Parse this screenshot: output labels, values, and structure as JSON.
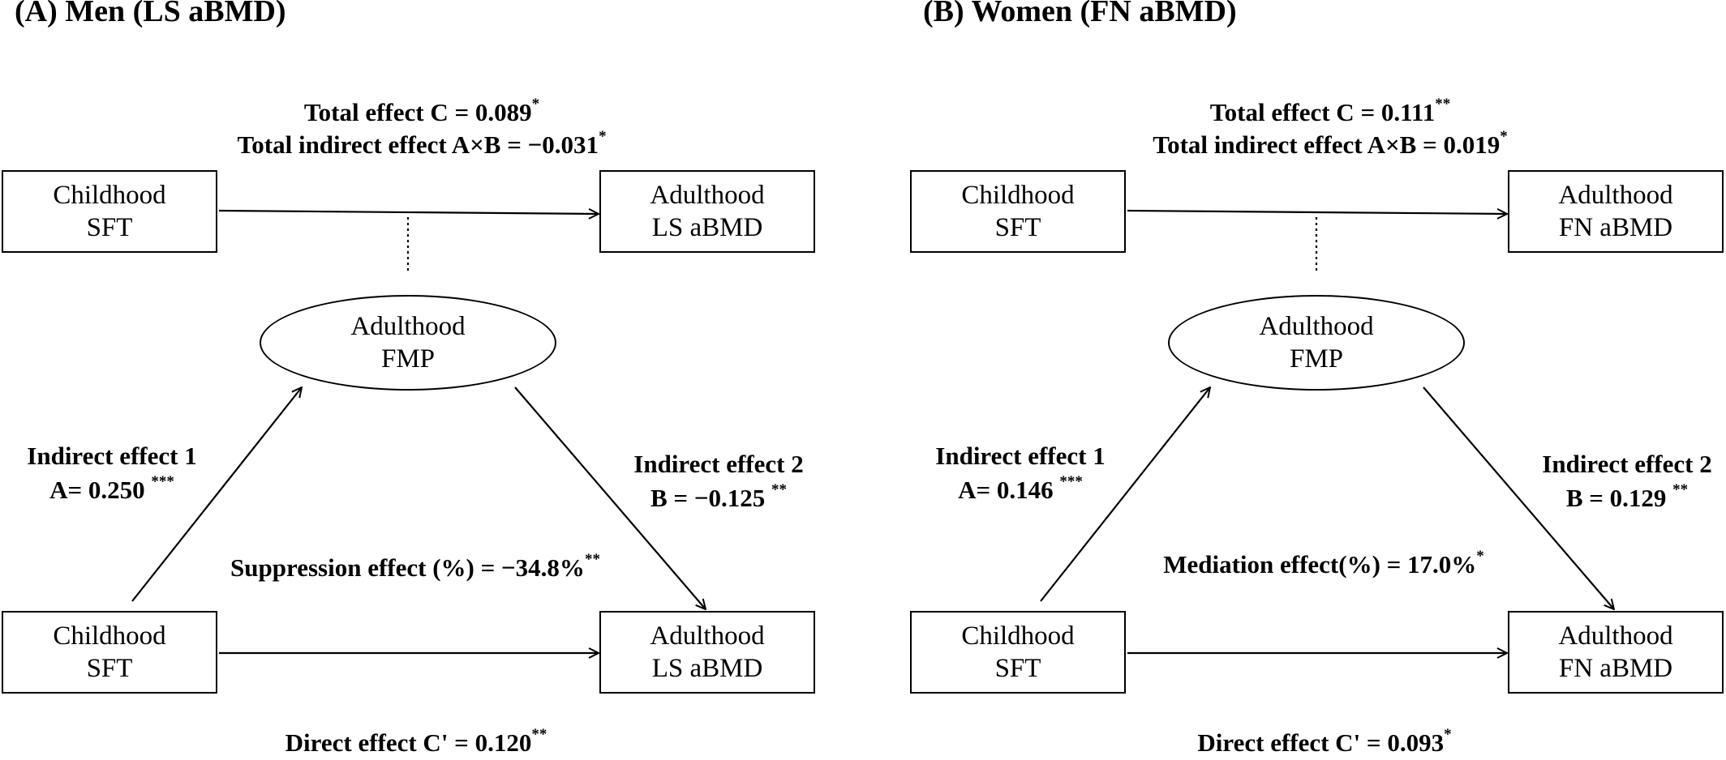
{
  "panels": [
    {
      "heading": "(A) Men (LS aBMD)",
      "total_effect": "Total effect C = 0.089",
      "total_effect_sig": "*",
      "total_indirect": "Total indirect effect A×B = −0.031",
      "total_indirect_sig": "*",
      "nodes": {
        "childhood_top": [
          "Childhood",
          "SFT"
        ],
        "adulthood_top": [
          "Adulthood",
          "LS aBMD"
        ],
        "mediator": [
          "Adulthood",
          "FMP"
        ],
        "childhood_bottom": [
          "Childhood",
          "SFT"
        ],
        "adulthood_bottom": [
          "Adulthood",
          "LS aBMD"
        ]
      },
      "indirect1_title": "Indirect effect 1",
      "indirect1_value": "A= 0.250",
      "indirect1_sig": "***",
      "indirect2_title": "Indirect effect 2",
      "indirect2_value": "B = −0.125",
      "indirect2_sig": "**",
      "proportion_label": "Suppression effect (%) = −34.8%",
      "proportion_sig": "**",
      "direct_effect": "Direct effect C' = 0.120",
      "direct_sig": "**"
    },
    {
      "heading": "(B) Women (FN aBMD)",
      "total_effect": "Total effect C = 0.111",
      "total_effect_sig": "**",
      "total_indirect": "Total indirect effect A×B = 0.019",
      "total_indirect_sig": "*",
      "nodes": {
        "childhood_top": [
          "Childhood",
          "SFT"
        ],
        "adulthood_top": [
          "Adulthood",
          "FN aBMD"
        ],
        "mediator": [
          "Adulthood",
          "FMP"
        ],
        "childhood_bottom": [
          "Childhood",
          "SFT"
        ],
        "adulthood_bottom": [
          "Adulthood",
          "FN aBMD"
        ]
      },
      "indirect1_title": "Indirect effect 1",
      "indirect1_value": "A= 0.146",
      "indirect1_sig": "***",
      "indirect2_title": "Indirect effect 2",
      "indirect2_value": "B = 0.129",
      "indirect2_sig": "**",
      "proportion_label": "Mediation effect(%) = 17.0%",
      "proportion_sig": "*",
      "direct_effect": "Direct effect C' = 0.093",
      "direct_sig": "*"
    }
  ]
}
